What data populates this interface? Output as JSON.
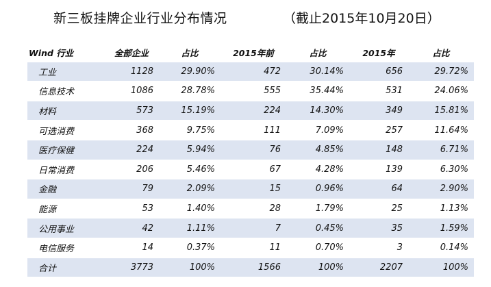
{
  "title": {
    "main": "新三板挂牌企业行业分布情况",
    "date": "（截止2015年10月20日）"
  },
  "table": {
    "headers": [
      "Wind 行业",
      "全部企业",
      "占比",
      "2015年前",
      "占比",
      "2015年",
      "占比"
    ],
    "rows": [
      [
        "工业",
        "1128",
        "29.90%",
        "472",
        "30.14%",
        "656",
        "29.72%"
      ],
      [
        "信息技术",
        "1086",
        "28.78%",
        "555",
        "35.44%",
        "531",
        "24.06%"
      ],
      [
        "材料",
        "573",
        "15.19%",
        "224",
        "14.30%",
        "349",
        "15.81%"
      ],
      [
        "可选消费",
        "368",
        "9.75%",
        "111",
        "7.09%",
        "257",
        "11.64%"
      ],
      [
        "医疗保健",
        "224",
        "5.94%",
        "76",
        "4.85%",
        "148",
        "6.71%"
      ],
      [
        "日常消费",
        "206",
        "5.46%",
        "67",
        "4.28%",
        "139",
        "6.30%"
      ],
      [
        "金融",
        "79",
        "2.09%",
        "15",
        "0.96%",
        "64",
        "2.90%"
      ],
      [
        "能源",
        "53",
        "1.40%",
        "28",
        "1.79%",
        "25",
        "1.13%"
      ],
      [
        "公用事业",
        "42",
        "1.11%",
        "7",
        "0.45%",
        "35",
        "1.59%"
      ],
      [
        "电信服务",
        "14",
        "0.37%",
        "11",
        "0.70%",
        "3",
        "0.14%"
      ],
      [
        "合计",
        "3773",
        "100%",
        "1566",
        "100%",
        "2207",
        "100%"
      ]
    ]
  },
  "colors": {
    "band": "#dde4f1",
    "text": "#111111"
  }
}
